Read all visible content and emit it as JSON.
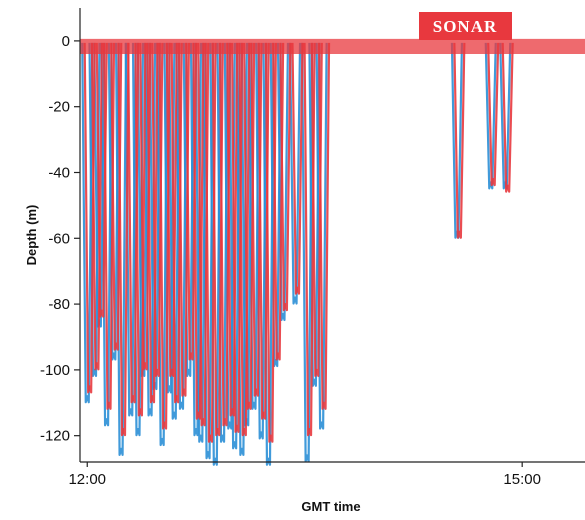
{
  "chart_data": {
    "type": "line",
    "title": "",
    "badge_label": "SONAR",
    "xlabel": "GMT time",
    "ylabel": "Depth (m)",
    "ylim": [
      -128,
      10
    ],
    "yticks": [
      0,
      -20,
      -40,
      -60,
      -80,
      -100,
      -120
    ],
    "ytick_labels": [
      "0",
      "-20",
      "-40",
      "-60",
      "-80",
      "-100",
      "-120"
    ],
    "xlim": [
      "11:57",
      "15:26"
    ],
    "xticks": [
      "12:00",
      "15:00"
    ],
    "grid": false,
    "colors": {
      "blue": "#2b8fd6",
      "red": "#e8383e",
      "badge": "#e8383e"
    },
    "series": [
      {
        "color": "blue",
        "dives": [
          [
            "12:00",
            -108
          ],
          [
            "12:03",
            -100
          ],
          [
            "12:05",
            -85
          ],
          [
            "12:08",
            -115
          ],
          [
            "12:11",
            -95
          ],
          [
            "12:14",
            -124
          ],
          [
            "12:18",
            -112
          ],
          [
            "12:21",
            -118
          ],
          [
            "12:23",
            -100
          ],
          [
            "12:26",
            -112
          ],
          [
            "12:28",
            -104
          ],
          [
            "12:31",
            -121
          ],
          [
            "12:34",
            -105
          ],
          [
            "12:36",
            -113
          ],
          [
            "12:39",
            -110
          ],
          [
            "12:42",
            -100
          ],
          [
            "12:45",
            -118
          ],
          [
            "12:47",
            -120
          ],
          [
            "12:50",
            -125
          ],
          [
            "12:53",
            -127
          ],
          [
            "12:56",
            -120
          ],
          [
            "12:59",
            -116
          ],
          [
            "13:01",
            -122
          ],
          [
            "13:04",
            -124
          ],
          [
            "13:06",
            -115
          ],
          [
            "13:09",
            -110
          ],
          [
            "13:12",
            -119
          ],
          [
            "13:15",
            -127
          ],
          [
            "13:18",
            -97
          ],
          [
            "13:21",
            -83
          ],
          [
            "13:26",
            -78
          ],
          [
            "13:31",
            -126
          ],
          [
            "13:34",
            -103
          ],
          [
            "13:37",
            -116
          ],
          [
            "14:33",
            -58
          ],
          [
            "14:47",
            -43
          ],
          [
            "14:53",
            -43
          ]
        ]
      },
      {
        "color": "red",
        "dives": [
          [
            "12:01",
            -105
          ],
          [
            "12:04",
            -98
          ],
          [
            "12:06",
            -82
          ],
          [
            "12:09",
            -110
          ],
          [
            "12:12",
            -92
          ],
          [
            "12:15",
            -118
          ],
          [
            "12:19",
            -108
          ],
          [
            "12:22",
            -112
          ],
          [
            "12:24",
            -98
          ],
          [
            "12:27",
            -108
          ],
          [
            "12:29",
            -100
          ],
          [
            "12:32",
            -116
          ],
          [
            "12:35",
            -100
          ],
          [
            "12:37",
            -108
          ],
          [
            "12:40",
            -106
          ],
          [
            "12:43",
            -95
          ],
          [
            "12:46",
            -113
          ],
          [
            "12:48",
            -115
          ],
          [
            "12:51",
            -120
          ],
          [
            "12:54",
            -118
          ],
          [
            "12:57",
            -115
          ],
          [
            "13:00",
            -112
          ],
          [
            "13:02",
            -117
          ],
          [
            "13:05",
            -118
          ],
          [
            "13:07",
            -110
          ],
          [
            "13:10",
            -106
          ],
          [
            "13:13",
            -113
          ],
          [
            "13:16",
            -120
          ],
          [
            "13:19",
            -95
          ],
          [
            "13:22",
            -80
          ],
          [
            "13:27",
            -75
          ],
          [
            "13:32",
            -118
          ],
          [
            "13:35",
            -100
          ],
          [
            "13:38",
            -110
          ],
          [
            "14:34",
            -58
          ],
          [
            "14:48",
            -42
          ],
          [
            "14:54",
            -44
          ]
        ]
      }
    ]
  }
}
